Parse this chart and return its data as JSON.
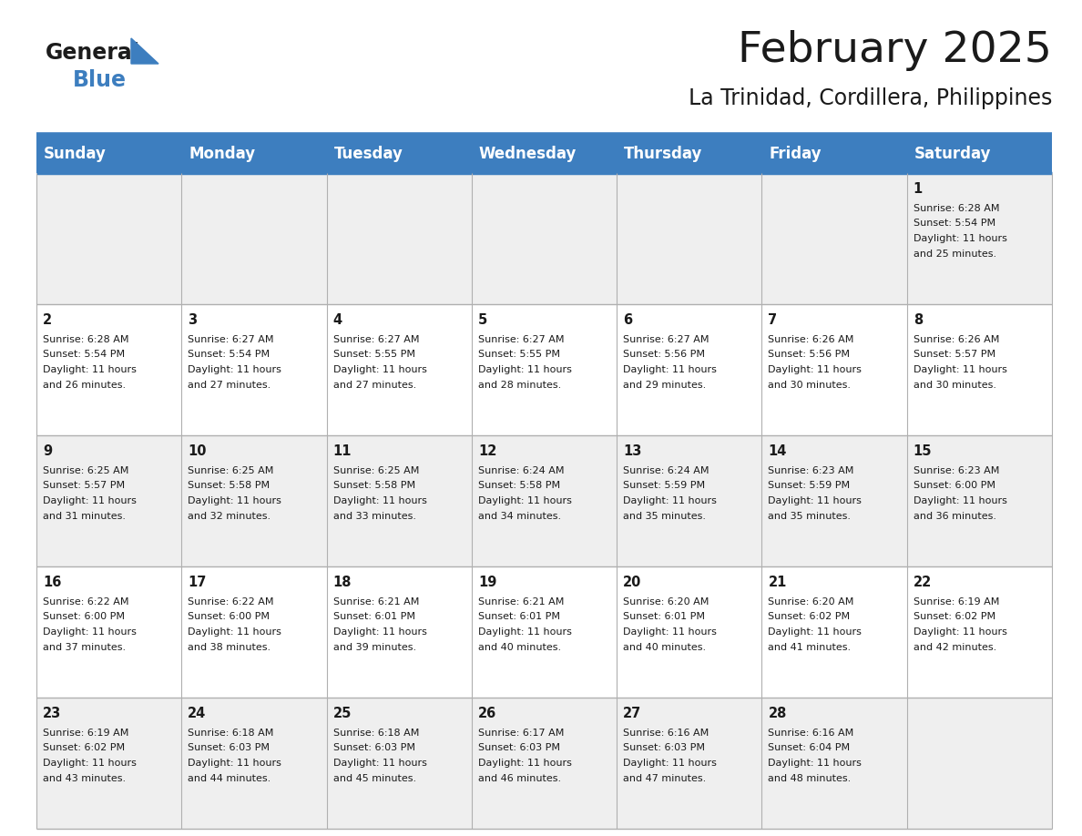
{
  "title": "February 2025",
  "subtitle": "La Trinidad, Cordillera, Philippines",
  "header_color": "#3d7ebf",
  "header_text_color": "#ffffff",
  "cell_bg_even": "#efefef",
  "cell_bg_odd": "#ffffff",
  "text_color": "#1a1a1a",
  "day_headers": [
    "Sunday",
    "Monday",
    "Tuesday",
    "Wednesday",
    "Thursday",
    "Friday",
    "Saturday"
  ],
  "title_fontsize": 34,
  "subtitle_fontsize": 17,
  "header_fontsize": 12,
  "day_num_fontsize": 10.5,
  "info_fontsize": 8.0,
  "logo_general_fontsize": 17,
  "logo_blue_fontsize": 17,
  "calendar_data": [
    [
      null,
      null,
      null,
      null,
      null,
      null,
      1
    ],
    [
      2,
      3,
      4,
      5,
      6,
      7,
      8
    ],
    [
      9,
      10,
      11,
      12,
      13,
      14,
      15
    ],
    [
      16,
      17,
      18,
      19,
      20,
      21,
      22
    ],
    [
      23,
      24,
      25,
      26,
      27,
      28,
      null
    ]
  ],
  "day_info": {
    "1": [
      "Sunrise: 6:28 AM",
      "Sunset: 5:54 PM",
      "Daylight: 11 hours",
      "and 25 minutes."
    ],
    "2": [
      "Sunrise: 6:28 AM",
      "Sunset: 5:54 PM",
      "Daylight: 11 hours",
      "and 26 minutes."
    ],
    "3": [
      "Sunrise: 6:27 AM",
      "Sunset: 5:54 PM",
      "Daylight: 11 hours",
      "and 27 minutes."
    ],
    "4": [
      "Sunrise: 6:27 AM",
      "Sunset: 5:55 PM",
      "Daylight: 11 hours",
      "and 27 minutes."
    ],
    "5": [
      "Sunrise: 6:27 AM",
      "Sunset: 5:55 PM",
      "Daylight: 11 hours",
      "and 28 minutes."
    ],
    "6": [
      "Sunrise: 6:27 AM",
      "Sunset: 5:56 PM",
      "Daylight: 11 hours",
      "and 29 minutes."
    ],
    "7": [
      "Sunrise: 6:26 AM",
      "Sunset: 5:56 PM",
      "Daylight: 11 hours",
      "and 30 minutes."
    ],
    "8": [
      "Sunrise: 6:26 AM",
      "Sunset: 5:57 PM",
      "Daylight: 11 hours",
      "and 30 minutes."
    ],
    "9": [
      "Sunrise: 6:25 AM",
      "Sunset: 5:57 PM",
      "Daylight: 11 hours",
      "and 31 minutes."
    ],
    "10": [
      "Sunrise: 6:25 AM",
      "Sunset: 5:58 PM",
      "Daylight: 11 hours",
      "and 32 minutes."
    ],
    "11": [
      "Sunrise: 6:25 AM",
      "Sunset: 5:58 PM",
      "Daylight: 11 hours",
      "and 33 minutes."
    ],
    "12": [
      "Sunrise: 6:24 AM",
      "Sunset: 5:58 PM",
      "Daylight: 11 hours",
      "and 34 minutes."
    ],
    "13": [
      "Sunrise: 6:24 AM",
      "Sunset: 5:59 PM",
      "Daylight: 11 hours",
      "and 35 minutes."
    ],
    "14": [
      "Sunrise: 6:23 AM",
      "Sunset: 5:59 PM",
      "Daylight: 11 hours",
      "and 35 minutes."
    ],
    "15": [
      "Sunrise: 6:23 AM",
      "Sunset: 6:00 PM",
      "Daylight: 11 hours",
      "and 36 minutes."
    ],
    "16": [
      "Sunrise: 6:22 AM",
      "Sunset: 6:00 PM",
      "Daylight: 11 hours",
      "and 37 minutes."
    ],
    "17": [
      "Sunrise: 6:22 AM",
      "Sunset: 6:00 PM",
      "Daylight: 11 hours",
      "and 38 minutes."
    ],
    "18": [
      "Sunrise: 6:21 AM",
      "Sunset: 6:01 PM",
      "Daylight: 11 hours",
      "and 39 minutes."
    ],
    "19": [
      "Sunrise: 6:21 AM",
      "Sunset: 6:01 PM",
      "Daylight: 11 hours",
      "and 40 minutes."
    ],
    "20": [
      "Sunrise: 6:20 AM",
      "Sunset: 6:01 PM",
      "Daylight: 11 hours",
      "and 40 minutes."
    ],
    "21": [
      "Sunrise: 6:20 AM",
      "Sunset: 6:02 PM",
      "Daylight: 11 hours",
      "and 41 minutes."
    ],
    "22": [
      "Sunrise: 6:19 AM",
      "Sunset: 6:02 PM",
      "Daylight: 11 hours",
      "and 42 minutes."
    ],
    "23": [
      "Sunrise: 6:19 AM",
      "Sunset: 6:02 PM",
      "Daylight: 11 hours",
      "and 43 minutes."
    ],
    "24": [
      "Sunrise: 6:18 AM",
      "Sunset: 6:03 PM",
      "Daylight: 11 hours",
      "and 44 minutes."
    ],
    "25": [
      "Sunrise: 6:18 AM",
      "Sunset: 6:03 PM",
      "Daylight: 11 hours",
      "and 45 minutes."
    ],
    "26": [
      "Sunrise: 6:17 AM",
      "Sunset: 6:03 PM",
      "Daylight: 11 hours",
      "and 46 minutes."
    ],
    "27": [
      "Sunrise: 6:16 AM",
      "Sunset: 6:03 PM",
      "Daylight: 11 hours",
      "and 47 minutes."
    ],
    "28": [
      "Sunrise: 6:16 AM",
      "Sunset: 6:04 PM",
      "Daylight: 11 hours",
      "and 48 minutes."
    ]
  }
}
